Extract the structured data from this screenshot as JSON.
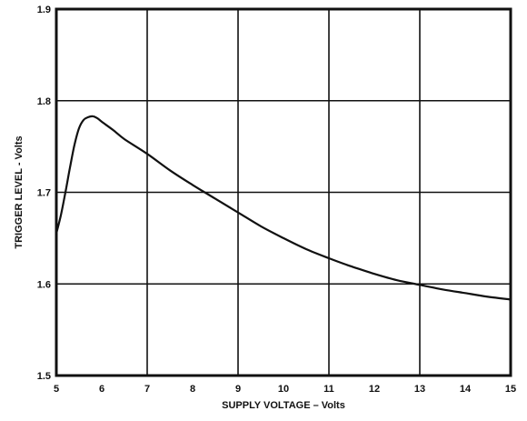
{
  "chart_data": {
    "type": "line",
    "title": "",
    "xlabel": "SUPPLY VOLTAGE – Volts",
    "ylabel": "TRIGGER LEVEL - Volts",
    "xlim": [
      5,
      15
    ],
    "ylim": [
      1.5,
      1.9
    ],
    "x_ticks": [
      "5",
      "6",
      "7",
      "8",
      "9",
      "10",
      "11",
      "12",
      "13",
      "14",
      "15"
    ],
    "y_ticks": [
      "1.5",
      "1.6",
      "1.7",
      "1.8",
      "1.9"
    ],
    "x_tick_values": [
      5,
      6,
      7,
      8,
      9,
      10,
      11,
      12,
      13,
      14,
      15
    ],
    "y_tick_values": [
      1.5,
      1.6,
      1.7,
      1.8,
      1.9
    ],
    "grid_x": [
      7,
      9,
      11,
      13
    ],
    "grid_y": [
      1.6,
      1.7,
      1.8
    ],
    "grid": true,
    "colors": {
      "line": "#111111",
      "grid": "#111111",
      "frame": "#111111"
    },
    "series": [
      {
        "x": [
          5.0,
          5.1,
          5.2,
          5.3,
          5.4,
          5.5,
          5.6,
          5.7,
          5.8,
          5.9,
          6.0,
          6.25,
          6.5,
          7.0,
          7.5,
          8.0,
          8.5,
          9.0,
          9.5,
          10.0,
          10.5,
          11.0,
          11.5,
          12.0,
          12.5,
          13.0,
          13.5,
          14.0,
          14.5,
          15.0
        ],
        "y": [
          1.655,
          1.675,
          1.7,
          1.727,
          1.752,
          1.77,
          1.779,
          1.782,
          1.783,
          1.781,
          1.777,
          1.768,
          1.758,
          1.742,
          1.724,
          1.708,
          1.693,
          1.678,
          1.663,
          1.65,
          1.638,
          1.628,
          1.619,
          1.611,
          1.604,
          1.599,
          1.594,
          1.59,
          1.586,
          1.583
        ]
      }
    ]
  }
}
